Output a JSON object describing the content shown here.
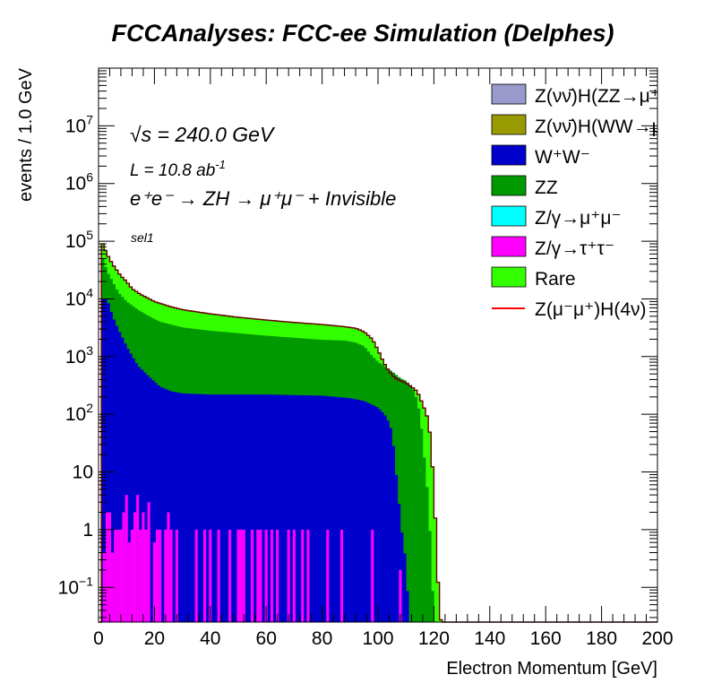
{
  "chart_data": {
    "type": "histogram-stacked",
    "title": "FCCAnalyses: FCC-ee Simulation (Delphes)",
    "xlabel": "Electron Momentum [GeV]",
    "ylabel": "events / 1.0 GeV",
    "xlim": [
      0,
      200
    ],
    "ylim": [
      0.025,
      100000000
    ],
    "yscale": "log",
    "bin_width": 1.0,
    "x_ticks": [
      "0",
      "20",
      "40",
      "60",
      "80",
      "100",
      "120",
      "140",
      "160",
      "180",
      "200"
    ],
    "y_ticks": [
      {
        "v": 0.1,
        "label": "10",
        "sup": "−1"
      },
      {
        "v": 1,
        "label": "1",
        "sup": ""
      },
      {
        "v": 10,
        "label": "10",
        "sup": ""
      },
      {
        "v": 100,
        "label": "10",
        "sup": "2"
      },
      {
        "v": 1000,
        "label": "10",
        "sup": "3"
      },
      {
        "v": 10000,
        "label": "10",
        "sup": "4"
      },
      {
        "v": 100000,
        "label": "10",
        "sup": "5"
      },
      {
        "v": 1000000,
        "label": "10",
        "sup": "6"
      },
      {
        "v": 10000000,
        "label": "10",
        "sup": "7"
      }
    ],
    "annotations": {
      "energy": "√s = 240.0 GeV",
      "lumi": "L = 10.8 ab",
      "lumi_sup": "-1",
      "process": "e⁺e⁻ → ZH → μ⁺μ⁻ + Invisible",
      "selection": "sel1"
    },
    "legend_position": "top-right",
    "legend": [
      {
        "label": "Z(νν̄)H(ZZ→μ⁺μ⁻ν⁺",
        "color": "#9999cc",
        "kind": "fill"
      },
      {
        "label": "Z(νν̄)H(WW→μ⁺νμ",
        "color": "#999900",
        "kind": "fill"
      },
      {
        "label": "W⁺W⁻",
        "color": "#0000cc",
        "kind": "fill"
      },
      {
        "label": "ZZ",
        "color": "#009900",
        "kind": "fill"
      },
      {
        "label": "Z/γ→μ⁺μ⁻",
        "color": "#00ffff",
        "kind": "fill"
      },
      {
        "label": "Z/γ→τ⁺τ⁻",
        "color": "#ff00ff",
        "kind": "fill"
      },
      {
        "label": "Rare",
        "color": "#33ff00",
        "kind": "fill"
      },
      {
        "label": "Z(μ⁻μ⁺)H(4ν)",
        "color": "#ff0000",
        "kind": "line"
      }
    ],
    "series": [
      {
        "name": "Z/γ→τ⁺τ⁻",
        "color": "#ff00ff",
        "type": "sparse",
        "points": [
          [
            2,
            0.4
          ],
          [
            3,
            2
          ],
          [
            4,
            2
          ],
          [
            5,
            0.4
          ],
          [
            6,
            1
          ],
          [
            7,
            1
          ],
          [
            8,
            1
          ],
          [
            9,
            2
          ],
          [
            10,
            4
          ],
          [
            11,
            0.6
          ],
          [
            12,
            1
          ],
          [
            13,
            2
          ],
          [
            14,
            4
          ],
          [
            15,
            1
          ],
          [
            16,
            2
          ],
          [
            17,
            1
          ],
          [
            18,
            3
          ],
          [
            20,
            0.6
          ],
          [
            21,
            1
          ],
          [
            22,
            1
          ],
          [
            24,
            1
          ],
          [
            25,
            2
          ],
          [
            26,
            1
          ],
          [
            28,
            1
          ],
          [
            35,
            1
          ],
          [
            38,
            1
          ],
          [
            40,
            1
          ],
          [
            43,
            1
          ],
          [
            47,
            1
          ],
          [
            50,
            1
          ],
          [
            51,
            1
          ],
          [
            52,
            1
          ],
          [
            55,
            1
          ],
          [
            57,
            1
          ],
          [
            58,
            1
          ],
          [
            60,
            1
          ],
          [
            62,
            1
          ],
          [
            64,
            1
          ],
          [
            68,
            1
          ],
          [
            70,
            1
          ],
          [
            73,
            1
          ],
          [
            75,
            1
          ],
          [
            82,
            1
          ],
          [
            87,
            1
          ],
          [
            98,
            1
          ],
          [
            108,
            0.2
          ]
        ]
      },
      {
        "name": "W⁺W⁻",
        "color": "#0000cc",
        "type": "curve",
        "knots": [
          [
            1,
            0.025
          ],
          [
            1.5,
            10000
          ],
          [
            3,
            10000
          ],
          [
            5,
            5000
          ],
          [
            7,
            3000
          ],
          [
            10,
            1500
          ],
          [
            14,
            700
          ],
          [
            18,
            450
          ],
          [
            22,
            300
          ],
          [
            26,
            250
          ],
          [
            30,
            230
          ],
          [
            40,
            220
          ],
          [
            60,
            220
          ],
          [
            80,
            210
          ],
          [
            90,
            190
          ],
          [
            95,
            170
          ],
          [
            100,
            130
          ],
          [
            103,
            90
          ],
          [
            105,
            50
          ],
          [
            107,
            5
          ],
          [
            109,
            0.5
          ],
          [
            110,
            0.3
          ],
          [
            111,
            0.025
          ],
          [
            200,
            0.025
          ]
        ]
      },
      {
        "name": "ZZ",
        "color": "#009900",
        "type": "curve",
        "knots": [
          [
            1,
            0.025
          ],
          [
            1.5,
            50000
          ],
          [
            3,
            30000
          ],
          [
            5,
            20000
          ],
          [
            7,
            13000
          ],
          [
            10,
            9000
          ],
          [
            14,
            6500
          ],
          [
            18,
            5000
          ],
          [
            22,
            4000
          ],
          [
            30,
            3200
          ],
          [
            40,
            2800
          ],
          [
            60,
            2300
          ],
          [
            80,
            1950
          ],
          [
            88,
            1900
          ],
          [
            92,
            1750
          ],
          [
            95,
            1500
          ],
          [
            98,
            1000
          ],
          [
            100,
            800
          ],
          [
            102,
            700
          ],
          [
            105,
            550
          ],
          [
            108,
            420
          ],
          [
            110,
            380
          ],
          [
            113,
            250
          ],
          [
            115,
            100
          ],
          [
            117,
            10
          ],
          [
            118,
            3
          ],
          [
            119,
            0.3
          ],
          [
            120,
            0.025
          ],
          [
            200,
            0.025
          ]
        ]
      },
      {
        "name": "Rare",
        "color": "#33ff00",
        "type": "curve",
        "knots": [
          [
            1,
            0.025
          ],
          [
            1.5,
            90000
          ],
          [
            3,
            60000
          ],
          [
            5,
            40000
          ],
          [
            8,
            25000
          ],
          [
            10,
            20000
          ],
          [
            12,
            15000
          ],
          [
            15,
            12000
          ],
          [
            20,
            9000
          ],
          [
            25,
            7500
          ],
          [
            30,
            6500
          ],
          [
            40,
            5500
          ],
          [
            50,
            4800
          ],
          [
            60,
            4300
          ],
          [
            70,
            3900
          ],
          [
            80,
            3600
          ],
          [
            88,
            3300
          ],
          [
            92,
            3100
          ],
          [
            95,
            2700
          ],
          [
            98,
            2000
          ],
          [
            100,
            1300
          ],
          [
            102,
            800
          ],
          [
            104,
            550
          ],
          [
            106,
            430
          ],
          [
            108,
            380
          ],
          [
            110,
            350
          ],
          [
            112,
            300
          ],
          [
            114,
            250
          ],
          [
            116,
            150
          ],
          [
            118,
            80
          ],
          [
            119,
            30
          ],
          [
            120,
            5
          ],
          [
            121,
            0.5
          ],
          [
            122,
            0.03
          ],
          [
            123,
            0.025
          ],
          [
            200,
            0.025
          ]
        ]
      },
      {
        "name": "Z(μ⁻μ⁺)H(4ν)",
        "color": "#cc0000",
        "type": "curve",
        "role": "outline",
        "knots": [
          [
            1,
            0.025
          ],
          [
            1.5,
            90000
          ],
          [
            3,
            60000
          ],
          [
            5,
            40000
          ],
          [
            8,
            25000
          ],
          [
            10,
            20000
          ],
          [
            12,
            15000
          ],
          [
            15,
            12000
          ],
          [
            20,
            9000
          ],
          [
            25,
            7500
          ],
          [
            30,
            6500
          ],
          [
            40,
            5500
          ],
          [
            50,
            4800
          ],
          [
            60,
            4300
          ],
          [
            70,
            3900
          ],
          [
            80,
            3600
          ],
          [
            88,
            3300
          ],
          [
            92,
            3100
          ],
          [
            95,
            2700
          ],
          [
            98,
            2000
          ],
          [
            100,
            1300
          ],
          [
            102,
            800
          ],
          [
            104,
            550
          ],
          [
            106,
            430
          ],
          [
            108,
            380
          ],
          [
            110,
            350
          ],
          [
            112,
            300
          ],
          [
            114,
            250
          ],
          [
            116,
            150
          ],
          [
            118,
            80
          ],
          [
            119,
            30
          ],
          [
            120,
            5
          ],
          [
            121,
            0.5
          ],
          [
            122,
            0.03
          ],
          [
            123,
            0.025
          ],
          [
            200,
            0.025
          ]
        ]
      }
    ]
  }
}
